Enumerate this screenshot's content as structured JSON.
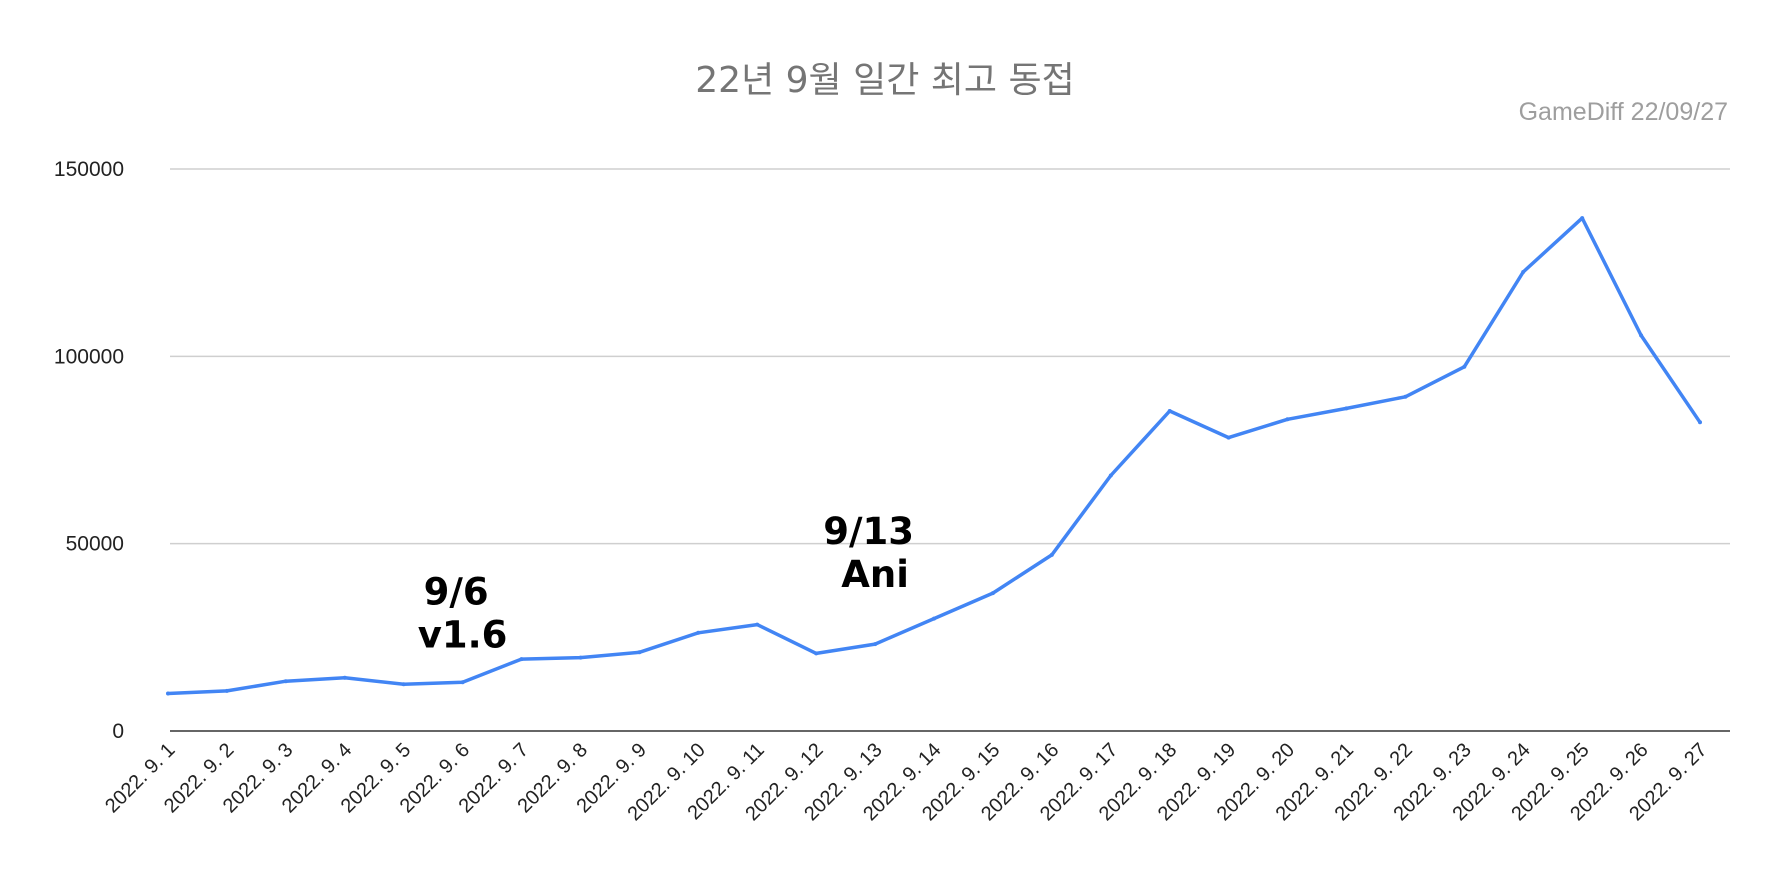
{
  "chart_data": {
    "type": "line",
    "title": "22년 9월 일간 최고 동접",
    "source_label": "GameDiff  22/09/27",
    "xlabel": "",
    "ylabel": "",
    "ylim": [
      0,
      150000
    ],
    "yticks": [
      "0",
      "50000",
      "100000",
      "150000"
    ],
    "grid": true,
    "legend": "none",
    "categories": [
      "2022. 9. 1",
      "2022. 9. 2",
      "2022. 9. 3",
      "2022. 9. 4",
      "2022. 9. 5",
      "2022. 9. 6",
      "2022. 9. 7",
      "2022. 9. 8",
      "2022. 9. 9",
      "2022. 9. 10",
      "2022. 9. 11",
      "2022. 9. 12",
      "2022. 9. 13",
      "2022. 9. 14",
      "2022. 9. 15",
      "2022. 9. 16",
      "2022. 9. 17",
      "2022. 9. 18",
      "2022. 9. 19",
      "2022. 9. 20",
      "2022. 9. 21",
      "2022. 9. 22",
      "2022. 9. 23",
      "2022. 9. 24",
      "2022. 9. 25",
      "2022. 9. 26",
      "2022. 9. 27"
    ],
    "series": [
      {
        "color": "#4285f4",
        "values": [
          10000,
          10700,
          13300,
          14200,
          12500,
          13000,
          19200,
          19600,
          21000,
          26200,
          28400,
          20700,
          23200,
          30000,
          36800,
          47000,
          68200,
          85400,
          78300,
          83200,
          86100,
          89200,
          97200,
          122500,
          136900,
          105600,
          82400
        ]
      }
    ],
    "annotations": [
      {
        "lines": [
          "9/6",
          "v1.6"
        ],
        "category": "2022. 9. 6"
      },
      {
        "lines": [
          "9/13",
          "Ani"
        ],
        "category": "2022. 9. 13"
      }
    ]
  }
}
